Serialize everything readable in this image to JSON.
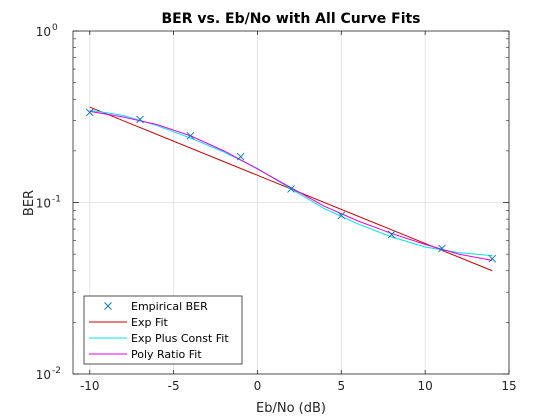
{
  "chart_data": {
    "type": "line",
    "title": "BER vs. Eb/No with All Curve Fits",
    "xlabel": "Eb/No (dB)",
    "ylabel": "BER",
    "xlim": [
      -11,
      15
    ],
    "ylim": [
      0.01,
      1
    ],
    "yscale": "log",
    "grid": true,
    "legend_position": "bottom-left",
    "x_ticks": [
      -10,
      -5,
      0,
      5,
      10,
      15
    ],
    "x_tick_labels": [
      "-10",
      "-5",
      "0",
      "5",
      "10",
      "15"
    ],
    "y_ticks": [
      {
        "value": 0.01,
        "base": "10",
        "exp": "-2"
      },
      {
        "value": 0.1,
        "base": "10",
        "exp": "-1"
      },
      {
        "value": 1,
        "base": "10",
        "exp": "0"
      }
    ],
    "series": [
      {
        "name": "Empirical BER",
        "style": "marker",
        "marker": "x",
        "color": "#0072BD",
        "x": [
          -10,
          -7,
          -4,
          -1,
          2,
          5,
          8,
          11,
          14
        ],
        "y": [
          0.335,
          0.305,
          0.245,
          0.185,
          0.12,
          0.084,
          0.065,
          0.054,
          0.047
        ]
      },
      {
        "name": "Exp Fit",
        "style": "line",
        "color": "#cc0000",
        "x": [
          -10,
          14
        ],
        "y": [
          0.36,
          0.04
        ]
      },
      {
        "name": "Exp Plus Const Fit",
        "style": "line",
        "color": "#00e5e5",
        "x": [
          -10,
          -8,
          -6,
          -4,
          -2,
          0,
          2,
          4,
          6,
          8,
          10,
          12,
          14
        ],
        "y": [
          0.345,
          0.322,
          0.281,
          0.238,
          0.197,
          0.158,
          0.12,
          0.092,
          0.075,
          0.063,
          0.055,
          0.051,
          0.049
        ]
      },
      {
        "name": "Poly Ratio Fit",
        "style": "line",
        "color": "#e500e5",
        "x": [
          -10,
          -8,
          -6,
          -4,
          -2,
          0,
          2,
          4,
          6,
          8,
          10,
          12,
          14
        ],
        "y": [
          0.34,
          0.315,
          0.285,
          0.245,
          0.2,
          0.157,
          0.122,
          0.095,
          0.078,
          0.066,
          0.057,
          0.05,
          0.046
        ]
      }
    ]
  }
}
